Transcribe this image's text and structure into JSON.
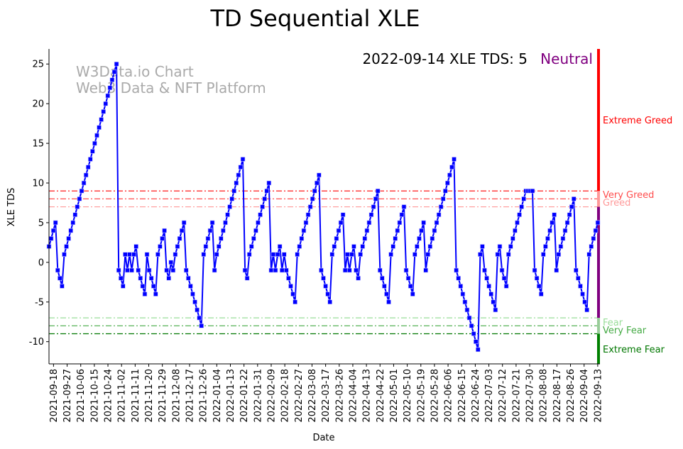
{
  "chart_data": {
    "type": "line",
    "title": "TD Sequential XLE",
    "xlabel": "Date",
    "ylabel": "XLE TDS",
    "ylim": [
      -12.8,
      26.9
    ],
    "x_start": "2021-09-15",
    "x_end": "2022-09-14",
    "yticks": [
      -10,
      -5,
      0,
      5,
      10,
      15,
      20,
      25
    ],
    "xticks": [
      "2021-09-18",
      "2021-09-27",
      "2021-10-06",
      "2021-10-15",
      "2021-10-24",
      "2021-11-02",
      "2021-11-11",
      "2021-11-20",
      "2021-11-29",
      "2021-12-08",
      "2021-12-17",
      "2021-12-26",
      "2022-01-04",
      "2022-01-13",
      "2022-01-22",
      "2022-01-31",
      "2022-02-09",
      "2022-02-18",
      "2022-02-27",
      "2022-03-08",
      "2022-03-17",
      "2022-03-26",
      "2022-04-04",
      "2022-04-13",
      "2022-04-22",
      "2022-05-01",
      "2022-05-10",
      "2022-05-19",
      "2022-05-28",
      "2022-06-06",
      "2022-06-15",
      "2022-06-24",
      "2022-07-03",
      "2022-07-12",
      "2022-07-21",
      "2022-07-30",
      "2022-08-08",
      "2022-08-17",
      "2022-08-26",
      "2022-09-04",
      "2022-09-13"
    ],
    "series": [
      {
        "name": "XLE TDS",
        "color": "#0000ff",
        "values": [
          2,
          3,
          4,
          5,
          -1,
          -2,
          -3,
          1,
          2,
          3,
          4,
          5,
          6,
          7,
          8,
          9,
          10,
          11,
          12,
          13,
          14,
          15,
          16,
          17,
          18,
          19,
          20,
          21,
          22,
          23,
          24,
          25,
          -1,
          -2,
          -3,
          1,
          -1,
          1,
          -1,
          1,
          2,
          -1,
          -2,
          -3,
          -4,
          1,
          -1,
          -2,
          -3,
          -4,
          1,
          2,
          3,
          4,
          -1,
          -2,
          0,
          -1,
          1,
          2,
          3,
          4,
          5,
          -1,
          -2,
          -3,
          -4,
          -5,
          -6,
          -7,
          -8,
          1,
          2,
          3,
          4,
          5,
          -1,
          1,
          2,
          3,
          4,
          5,
          6,
          7,
          8,
          9,
          10,
          11,
          12,
          13,
          -1,
          -2,
          1,
          2,
          3,
          4,
          5,
          6,
          7,
          8,
          9,
          10,
          -1,
          1,
          -1,
          1,
          2,
          -1,
          1,
          -1,
          -2,
          -3,
          -4,
          -5,
          1,
          2,
          3,
          4,
          5,
          6,
          7,
          8,
          9,
          10,
          11,
          -1,
          -2,
          -3,
          -4,
          -5,
          1,
          2,
          3,
          4,
          5,
          6,
          -1,
          1,
          -1,
          1,
          2,
          -1,
          -2,
          1,
          2,
          3,
          4,
          5,
          6,
          7,
          8,
          9,
          -1,
          -2,
          -3,
          -4,
          -5,
          1,
          2,
          3,
          4,
          5,
          6,
          7,
          -1,
          -2,
          -3,
          -4,
          1,
          2,
          3,
          4,
          5,
          -1,
          1,
          2,
          3,
          4,
          5,
          6,
          7,
          8,
          9,
          10,
          11,
          12,
          13,
          -1,
          -2,
          -3,
          -4,
          -5,
          -6,
          -7,
          -8,
          -9,
          -10,
          -11,
          1,
          2,
          -1,
          -2,
          -3,
          -4,
          -5,
          -6,
          1,
          2,
          -1,
          -2,
          -3,
          1,
          2,
          3,
          4,
          5,
          6,
          7,
          8,
          9,
          9,
          9,
          9,
          -1,
          -2,
          -3,
          -4,
          1,
          2,
          3,
          4,
          5,
          6,
          -1,
          1,
          2,
          3,
          4,
          5,
          6,
          7,
          8,
          -1,
          -2,
          -3,
          -4,
          -5,
          -6,
          1,
          2,
          3,
          4,
          5
        ]
      }
    ],
    "levels": [
      {
        "value": 9,
        "label": "Extreme Greed",
        "color": "#ff0000"
      },
      {
        "value": 8,
        "label": "Very Greed",
        "color": "#ff4d4d"
      },
      {
        "value": 7,
        "label": "Greed",
        "color": "#ff9999"
      },
      {
        "value": -7,
        "label": "Fear",
        "color": "#99dd99"
      },
      {
        "value": -8,
        "label": "Very Fear",
        "color": "#44aa44"
      },
      {
        "value": -9,
        "label": "Extreme Fear",
        "color": "#007700"
      }
    ],
    "side_labels": {
      "extreme_greed": "Extreme Greed",
      "very_greed": "Very Greed",
      "greed": "Greed",
      "fear": "Fear",
      "very_fear": "Very Fear",
      "extreme_fear": "Extreme Fear"
    },
    "annotation": "2022-09-14 XLE TDS: 5",
    "status": "Neutral",
    "status_color": "#800080",
    "watermark_line1": "W3Data.io Chart",
    "watermark_line2": "Web3 Data & NFT Platform"
  }
}
